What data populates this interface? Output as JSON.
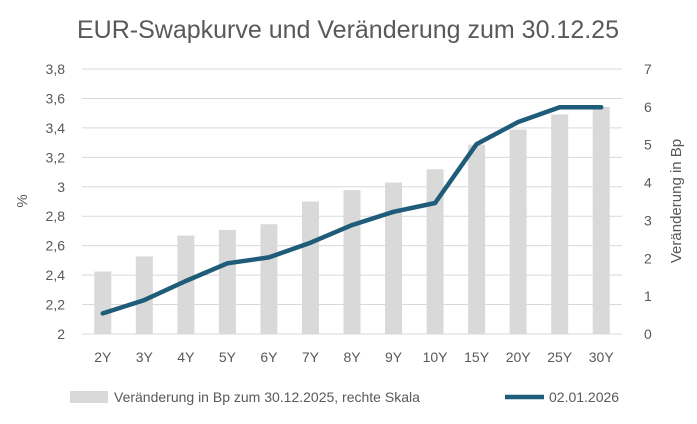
{
  "chart_data": {
    "type": "bar+line",
    "title": "EUR-Swapkurve und Veränderung zum 30.12.25",
    "categories": [
      "2Y",
      "3Y",
      "4Y",
      "5Y",
      "6Y",
      "7Y",
      "8Y",
      "9Y",
      "10Y",
      "15Y",
      "20Y",
      "25Y",
      "30Y"
    ],
    "left_axis": {
      "label": "%",
      "range": [
        2,
        3.8
      ],
      "ticks": [
        "2",
        "2,2",
        "2,4",
        "2,6",
        "2,8",
        "3",
        "3,2",
        "3,4",
        "3,6",
        "3,8"
      ]
    },
    "right_axis": {
      "label": "Veränderung in Bp",
      "range": [
        0,
        7
      ],
      "ticks": [
        "0",
        "1",
        "2",
        "3",
        "4",
        "5",
        "6",
        "7"
      ]
    },
    "grid": true,
    "legend_position": "bottom",
    "series": [
      {
        "name": "Veränderung in Bp zum 30.12.2025, rechte Skala",
        "type": "bar",
        "axis": "right",
        "color": "#d9d9d9",
        "values": [
          1.65,
          2.05,
          2.6,
          2.75,
          2.9,
          3.5,
          3.8,
          4.0,
          4.35,
          5.0,
          5.4,
          5.8,
          6.0
        ]
      },
      {
        "name": "02.01.2026",
        "type": "line",
        "axis": "left",
        "color": "#1f5c7a",
        "values": [
          2.14,
          2.23,
          2.36,
          2.48,
          2.52,
          2.62,
          2.74,
          2.83,
          2.89,
          3.29,
          3.44,
          3.54,
          3.54
        ]
      }
    ]
  }
}
